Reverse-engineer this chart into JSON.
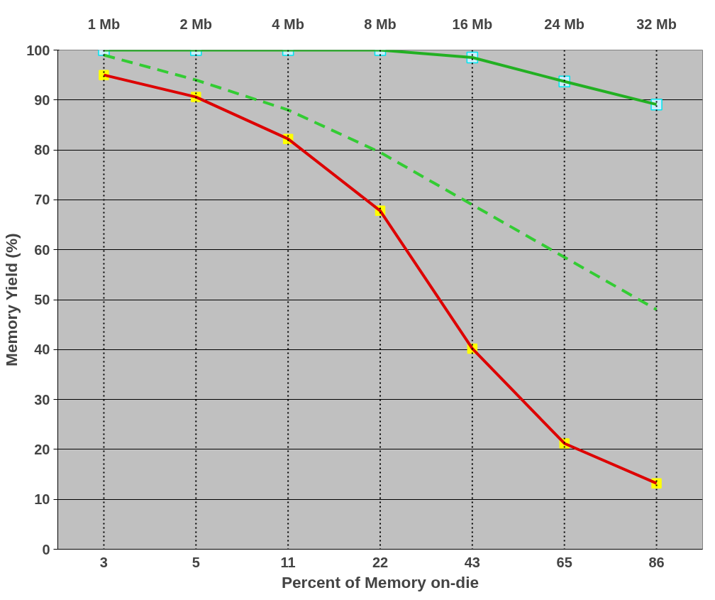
{
  "chart_data": {
    "type": "line",
    "xlabel": "Percent of Memory on-die",
    "ylabel": "Memory Yield (%)",
    "categories": [
      "3",
      "5",
      "11",
      "22",
      "43",
      "65",
      "86"
    ],
    "series": [
      {
        "color": "#22b022",
        "values": [
          100,
          100,
          100,
          100,
          98.5,
          93.7,
          89.1
        ],
        "marker": "square",
        "line_style": "solid"
      },
      {
        "color": "#33cc33",
        "values": [
          99,
          94,
          88,
          79.5,
          69,
          58.5,
          48
        ],
        "marker": "none",
        "line_style": "dashed"
      },
      {
        "color": "#dd0000",
        "values": [
          95,
          90.6,
          82.2,
          67.8,
          40.2,
          21.2,
          13.2
        ],
        "marker": "square",
        "line_style": "solid"
      }
    ],
    "ylim": [
      0,
      100
    ],
    "yticks": [
      0,
      10,
      20,
      30,
      40,
      50,
      60,
      70,
      80,
      90,
      100
    ],
    "grid": "y",
    "ref_lines": [
      {
        "axis": "x",
        "value": "3",
        "label": "1 Mb",
        "line_style": "dotted",
        "color": "#000000"
      },
      {
        "axis": "x",
        "value": "5",
        "label": "2 Mb",
        "line_style": "dotted",
        "color": "#000000"
      },
      {
        "axis": "x",
        "value": "11",
        "label": "4 Mb",
        "line_style": "dotted",
        "color": "#000000"
      },
      {
        "axis": "x",
        "value": "22",
        "label": "8 Mb",
        "line_style": "dotted",
        "color": "#000000"
      },
      {
        "axis": "x",
        "value": "43",
        "label": "16 Mb",
        "line_style": "dotted",
        "color": "#000000"
      },
      {
        "axis": "x",
        "value": "65",
        "label": "24 Mb",
        "line_style": "dotted",
        "color": "#000000"
      },
      {
        "axis": "x",
        "value": "86",
        "label": "32 Mb",
        "line_style": "dotted",
        "color": "#000000"
      }
    ]
  }
}
